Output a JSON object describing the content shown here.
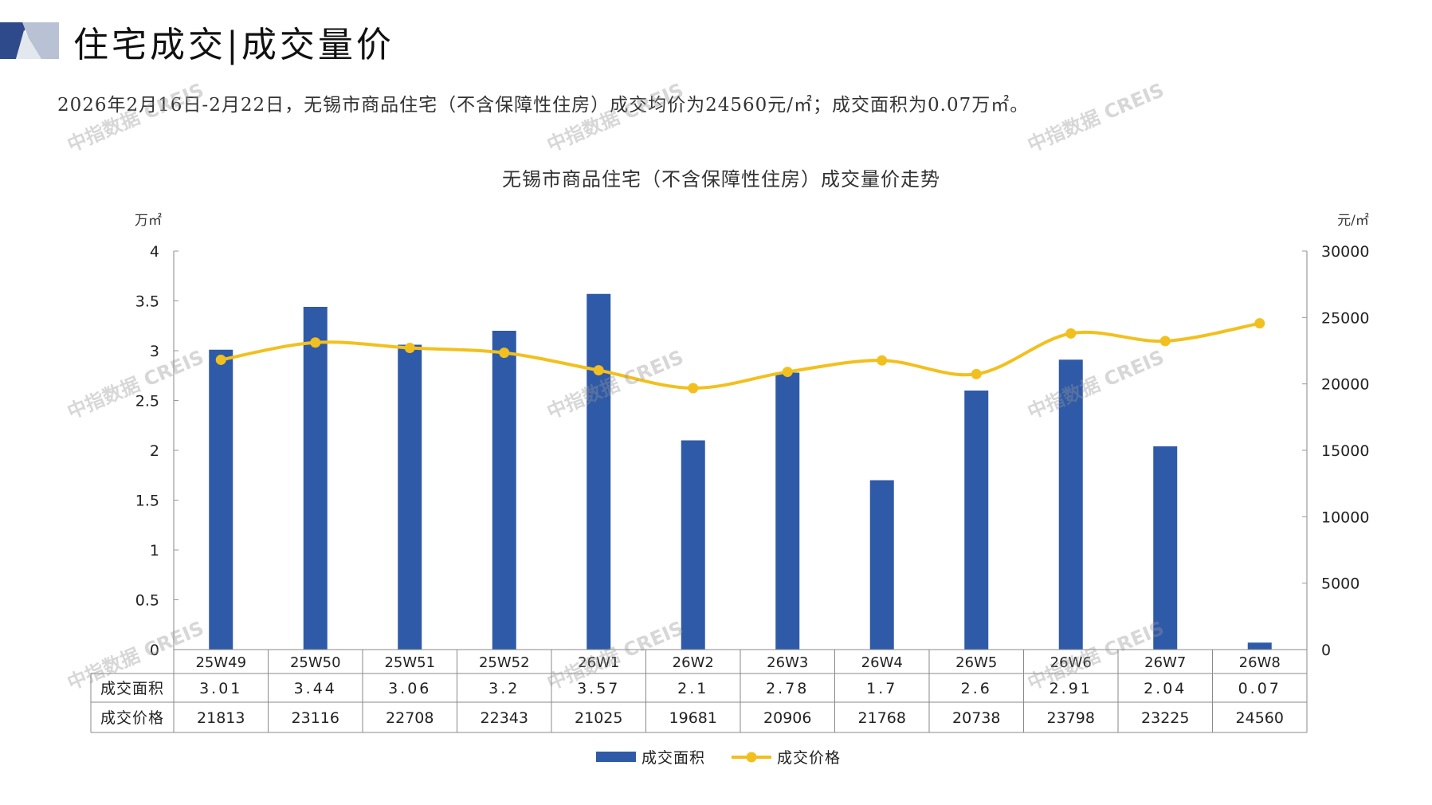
{
  "header": {
    "title": "住宅成交|成交量价",
    "summary": "2026年2月16日-2月22日，无锡市商品住宅（不含保障性住房）成交均价为24560元/㎡；成交面积为0.07万㎡。"
  },
  "watermark": "中指数据 CREIS",
  "colors": {
    "bar": "#2F5AA8",
    "line": "#F2C01E",
    "logo_dark": "#2F4A8A",
    "logo_light": "#B8C2D4"
  },
  "chart_data": {
    "type": "bar+line",
    "title": "无锡市商品住宅（不含保障性住房）成交量价走势",
    "left_axis": {
      "unit": "万㎡",
      "ylim": [
        0,
        4
      ],
      "ticks": [
        "0",
        "0.5",
        "1",
        "1.5",
        "2",
        "2.5",
        "3",
        "3.5",
        "4"
      ]
    },
    "right_axis": {
      "unit": "元/㎡",
      "ylim": [
        0,
        30000
      ],
      "ticks": [
        "0",
        "5000",
        "10000",
        "15000",
        "20000",
        "25000",
        "30000"
      ]
    },
    "categories": [
      "25W49",
      "25W50",
      "25W51",
      "25W52",
      "26W1",
      "26W2",
      "26W3",
      "26W4",
      "26W5",
      "26W6",
      "26W7",
      "26W8"
    ],
    "series": [
      {
        "name": "成交面积",
        "type": "bar",
        "axis": "left",
        "values": [
          3.01,
          3.44,
          3.06,
          3.2,
          3.57,
          2.1,
          2.78,
          1.7,
          2.6,
          2.91,
          2.04,
          0.07
        ],
        "labels": [
          "3.01",
          "3.44",
          "3.06",
          "3.2",
          "3.57",
          "2.1",
          "2.78",
          "1.7",
          "2.6",
          "2.91",
          "2.04",
          "0.07"
        ]
      },
      {
        "name": "成交价格",
        "type": "line",
        "axis": "right",
        "values": [
          21813,
          23116,
          22708,
          22343,
          21025,
          19681,
          20906,
          21768,
          20738,
          23798,
          23225,
          24560
        ],
        "labels": [
          "21813",
          "23116",
          "22708",
          "22343",
          "21025",
          "19681",
          "20906",
          "21768",
          "20738",
          "23798",
          "23225",
          "24560"
        ]
      }
    ],
    "legend_position": "bottom-center"
  }
}
